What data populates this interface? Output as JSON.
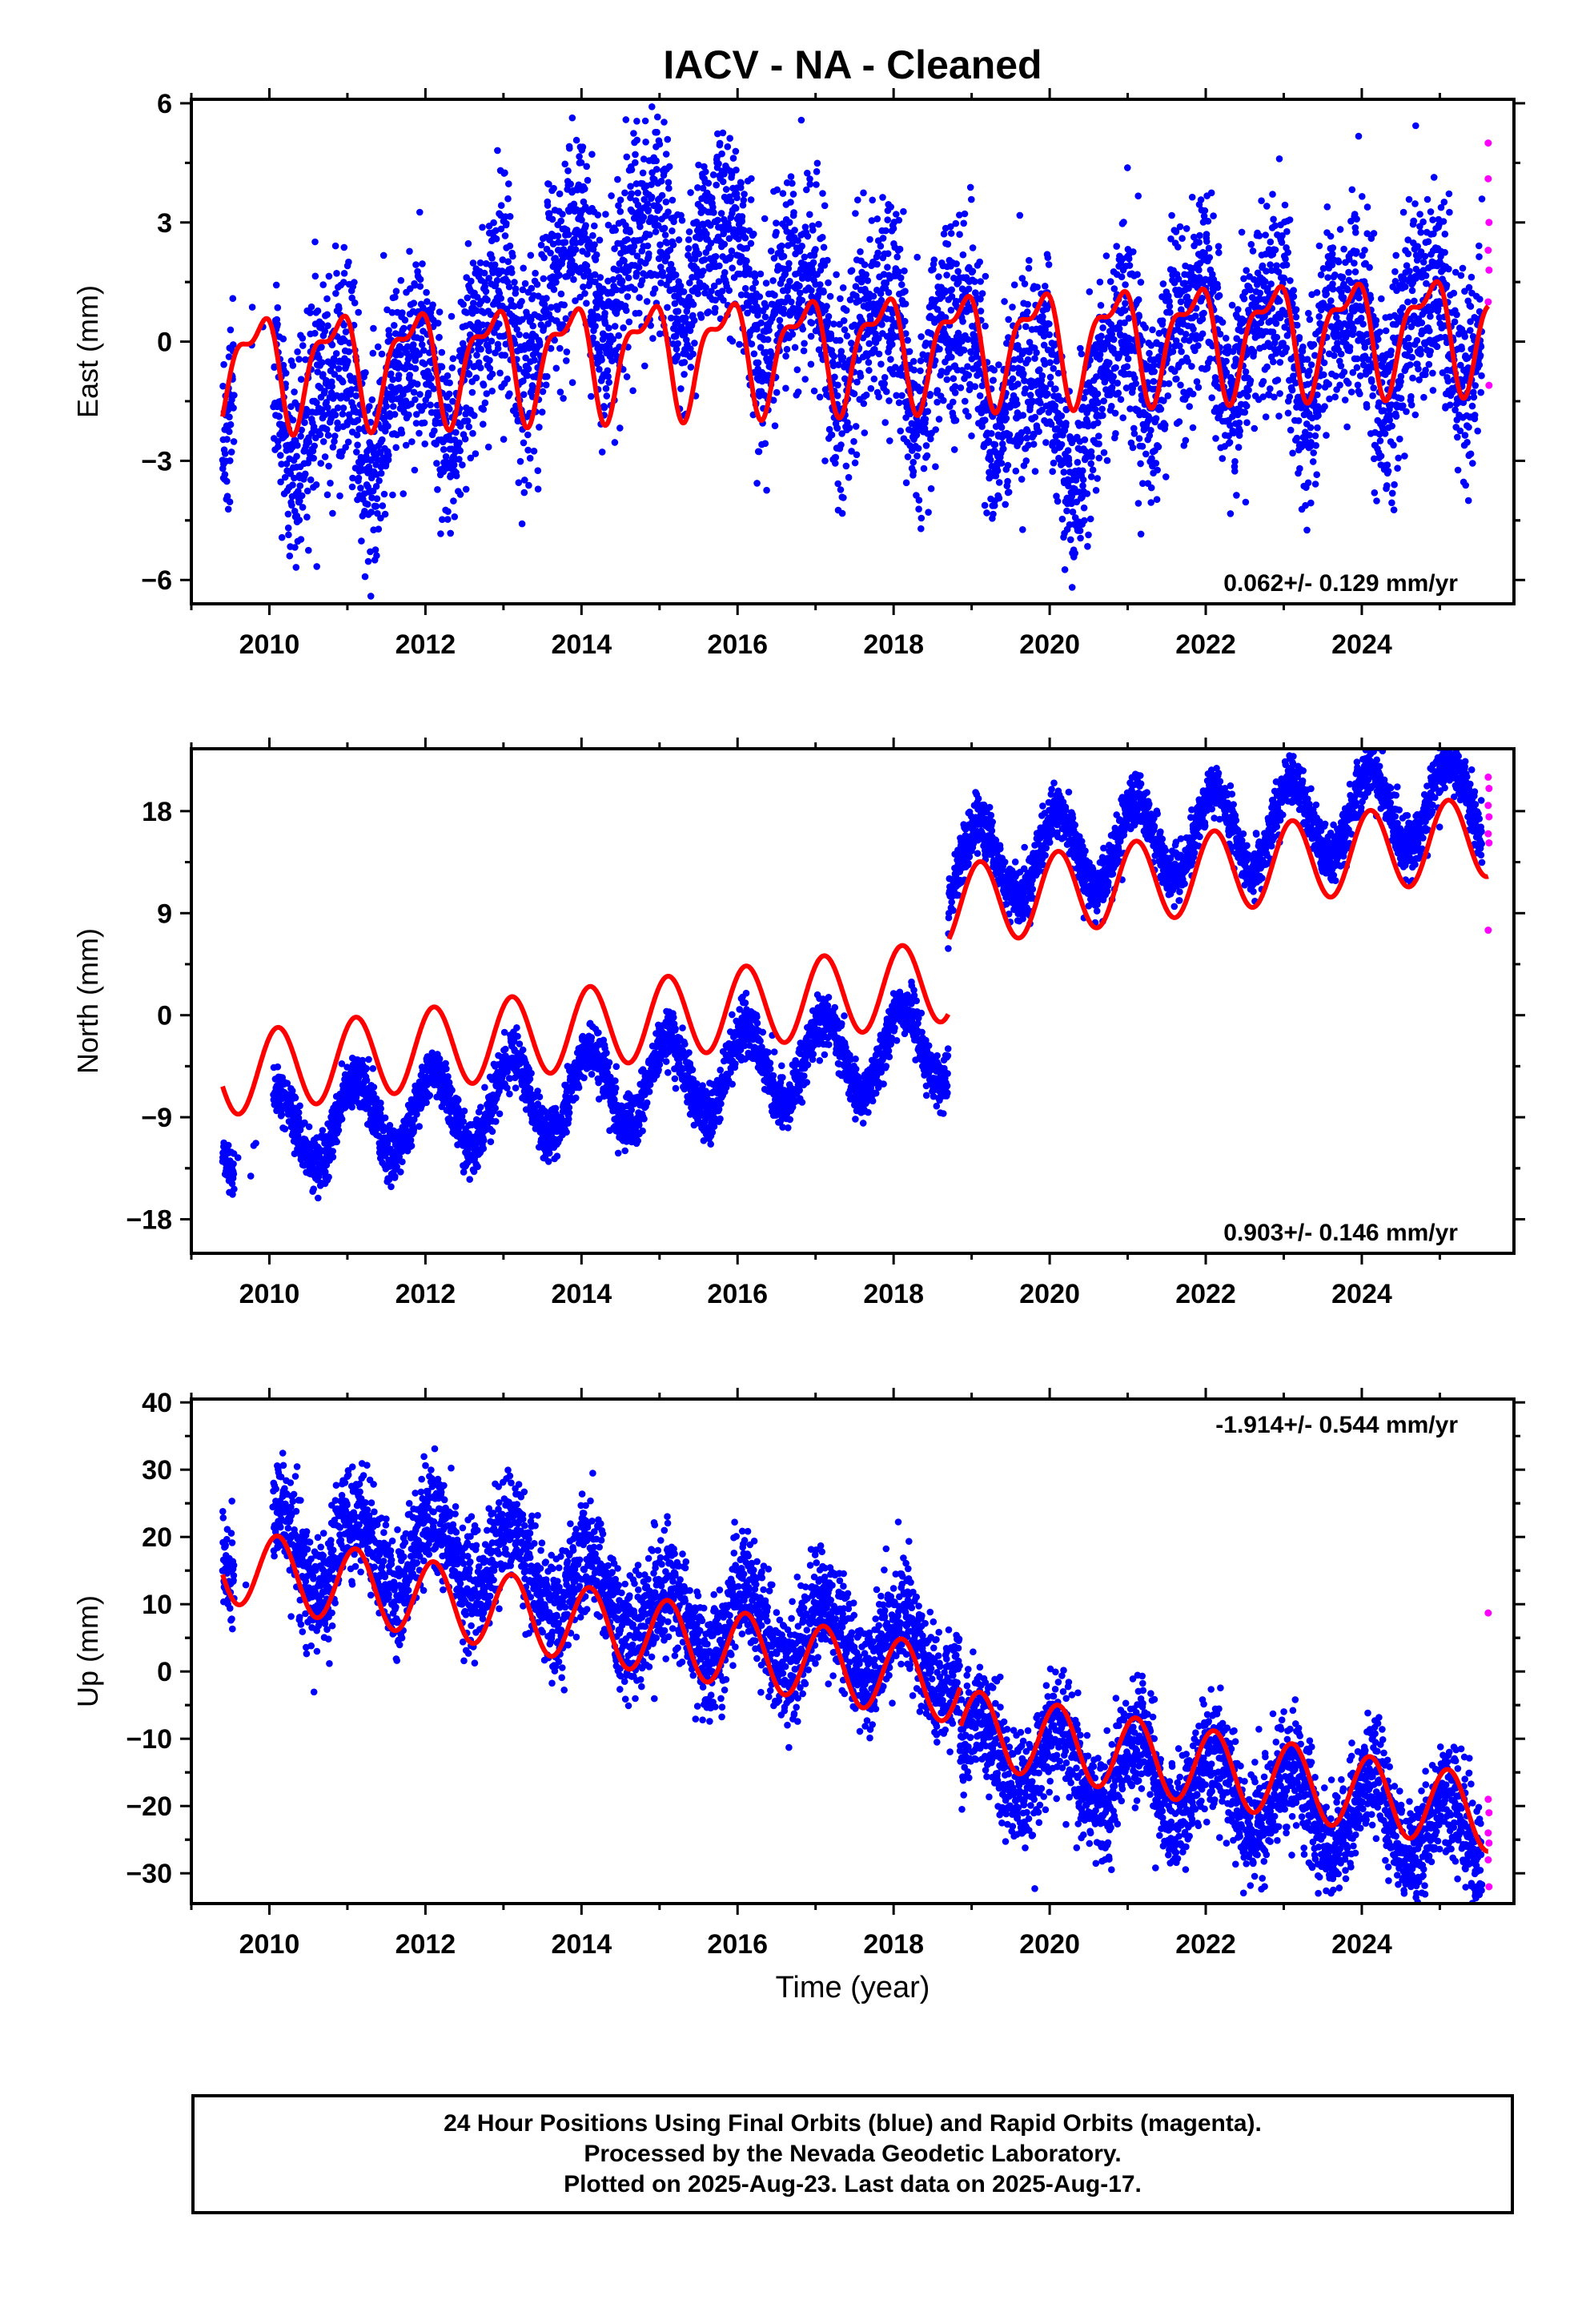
{
  "title": "IACV  - NA - Cleaned",
  "colors": {
    "final": "#0000ff",
    "rapid": "#ff00ff",
    "model": "#ff0000",
    "frame": "#000000"
  },
  "chart_data": [
    {
      "type": "scatter",
      "ylabel": "East (mm)",
      "xlabel": "",
      "xlim": [
        2009.0,
        2025.95
      ],
      "ylim": [
        -6.6,
        6.1
      ],
      "xticks": [
        2010,
        2012,
        2014,
        2016,
        2018,
        2020,
        2022,
        2024
      ],
      "yticks": [
        -6,
        -3,
        0,
        3,
        6
      ],
      "ytick_labels": [
        "−6",
        "−3",
        "0",
        "3",
        "6"
      ],
      "rate_label": "0.062+/- 0.129 mm/yr",
      "rate_position": "bottom-right",
      "data_start": 2009.4,
      "data_end": 2025.62,
      "final_orbits_end": 2025.54,
      "trend": {
        "t0": 2017.5,
        "intercept": -0.15,
        "rate": 0.062
      },
      "seasonal": {
        "annual_amp": 1.25,
        "annual_phase": 2.6,
        "semiannual_amp": 0.55,
        "semiannual_phase": 1.1
      },
      "scatter": {
        "sigma": 1.3,
        "wave_shift": 0.35
      },
      "offsets": [],
      "drift": [
        {
          "t": 2009.4,
          "v": -0.6
        },
        {
          "t": 2011.0,
          "v": -1.2
        },
        {
          "t": 2012.5,
          "v": -0.2
        },
        {
          "t": 2014.0,
          "v": 2.2
        },
        {
          "t": 2015.6,
          "v": 2.6
        },
        {
          "t": 2017.0,
          "v": 0.6
        },
        {
          "t": 2019.0,
          "v": -0.4
        },
        {
          "t": 2020.3,
          "v": -2.3
        },
        {
          "t": 2021.5,
          "v": 0.2
        },
        {
          "t": 2023.5,
          "v": -0.3
        },
        {
          "t": 2025.6,
          "v": 0.0
        }
      ],
      "gaps": [
        [
          2009.55,
          2010.05
        ]
      ],
      "rapid_points": [
        {
          "x": 2025.62,
          "y": 5.0
        },
        {
          "x": 2025.62,
          "y": 4.1
        },
        {
          "x": 2025.63,
          "y": 3.0
        },
        {
          "x": 2025.62,
          "y": 2.3
        },
        {
          "x": 2025.63,
          "y": 1.8
        },
        {
          "x": 2025.62,
          "y": 1.0
        },
        {
          "x": 2025.63,
          "y": -1.1
        }
      ]
    },
    {
      "type": "scatter",
      "ylabel": "North (mm)",
      "xlabel": "",
      "xlim": [
        2009.0,
        2025.95
      ],
      "ylim": [
        -21.0,
        23.5
      ],
      "xticks": [
        2010,
        2012,
        2014,
        2016,
        2018,
        2020,
        2022,
        2024
      ],
      "yticks": [
        -18,
        -9,
        0,
        9,
        18
      ],
      "ytick_labels": [
        "−18",
        "−9",
        "0",
        "9",
        "18"
      ],
      "rate_label": "0.903+/- 0.146 mm/yr",
      "rate_position": "bottom-right",
      "data_start": 2009.4,
      "data_end": 2025.62,
      "final_orbits_end": 2025.54,
      "trend": {
        "t0": 2017.5,
        "intercept": 2.0,
        "rate": 0.903
      },
      "seasonal": {
        "annual_amp": 3.6,
        "annual_phase": 0.9,
        "semiannual_amp": 0.0,
        "semiannual_phase": 0.0
      },
      "scatter": {
        "sigma": 1.2,
        "wave_shift": 0.0
      },
      "offsets": [
        {
          "t": 2018.7,
          "step": 6.5
        }
      ],
      "drift": [
        {
          "t": 2009.4,
          "v": -5.5
        },
        {
          "t": 2018.69,
          "v": -5.5
        },
        {
          "t": 2018.71,
          "v": 3.5
        },
        {
          "t": 2025.6,
          "v": 3.5
        }
      ],
      "gaps": [
        [
          2009.55,
          2010.05
        ]
      ],
      "rapid_points": [
        {
          "x": 2025.62,
          "y": 21.0
        },
        {
          "x": 2025.63,
          "y": 20.0
        },
        {
          "x": 2025.62,
          "y": 18.5
        },
        {
          "x": 2025.63,
          "y": 17.5
        },
        {
          "x": 2025.62,
          "y": 16.0
        },
        {
          "x": 2025.63,
          "y": 15.2
        },
        {
          "x": 2025.62,
          "y": 7.5
        }
      ]
    },
    {
      "type": "scatter",
      "ylabel": "Up (mm)",
      "xlabel": "Time (year)",
      "xlim": [
        2009.0,
        2025.95
      ],
      "ylim": [
        -34.5,
        40.5
      ],
      "xticks": [
        2010,
        2012,
        2014,
        2016,
        2018,
        2020,
        2022,
        2024
      ],
      "yticks": [
        -30,
        -20,
        -10,
        0,
        10,
        20,
        30,
        40
      ],
      "ytick_labels": [
        "−30",
        "−20",
        "−10",
        "0",
        "10",
        "20",
        "30",
        "40"
      ],
      "rate_label": "-1.914+/- 0.544 mm/yr",
      "rate_position": "top-right",
      "data_start": 2009.4,
      "data_end": 2025.62,
      "final_orbits_end": 2025.54,
      "trend": {
        "t0": 2017.5,
        "intercept": 0.4,
        "rate": -1.914
      },
      "seasonal": {
        "annual_amp": 5.6,
        "annual_phase": 0.9,
        "semiannual_amp": 0.0,
        "semiannual_phase": 0.0
      },
      "scatter": {
        "sigma": 4.2,
        "wave_shift": 0.0
      },
      "offsets": [
        {
          "t": 2018.85,
          "step": -6.0
        }
      ],
      "drift": [
        {
          "t": 2009.4,
          "v": 2.0
        },
        {
          "t": 2012.8,
          "v": 8.0
        },
        {
          "t": 2015.0,
          "v": 3.0
        },
        {
          "t": 2018.0,
          "v": 4.0
        },
        {
          "t": 2018.84,
          "v": 4.0
        },
        {
          "t": 2018.86,
          "v": -3.5
        },
        {
          "t": 2025.6,
          "v": -3.5
        }
      ],
      "gaps": [
        [
          2009.55,
          2010.05
        ]
      ],
      "rapid_points": [
        {
          "x": 2025.62,
          "y": 8.7
        },
        {
          "x": 2025.62,
          "y": -19.0
        },
        {
          "x": 2025.63,
          "y": -21.0
        },
        {
          "x": 2025.62,
          "y": -24.0
        },
        {
          "x": 2025.63,
          "y": -25.5
        },
        {
          "x": 2025.62,
          "y": -28.0
        },
        {
          "x": 2025.63,
          "y": -32.0
        }
      ]
    }
  ],
  "footer": {
    "line1": "24 Hour Positions Using Final Orbits (blue) and Rapid Orbits (magenta).",
    "line2": "Processed by the Nevada Geodetic Laboratory.",
    "line3": "Plotted on 2025-Aug-23. Last data on 2025-Aug-17."
  }
}
